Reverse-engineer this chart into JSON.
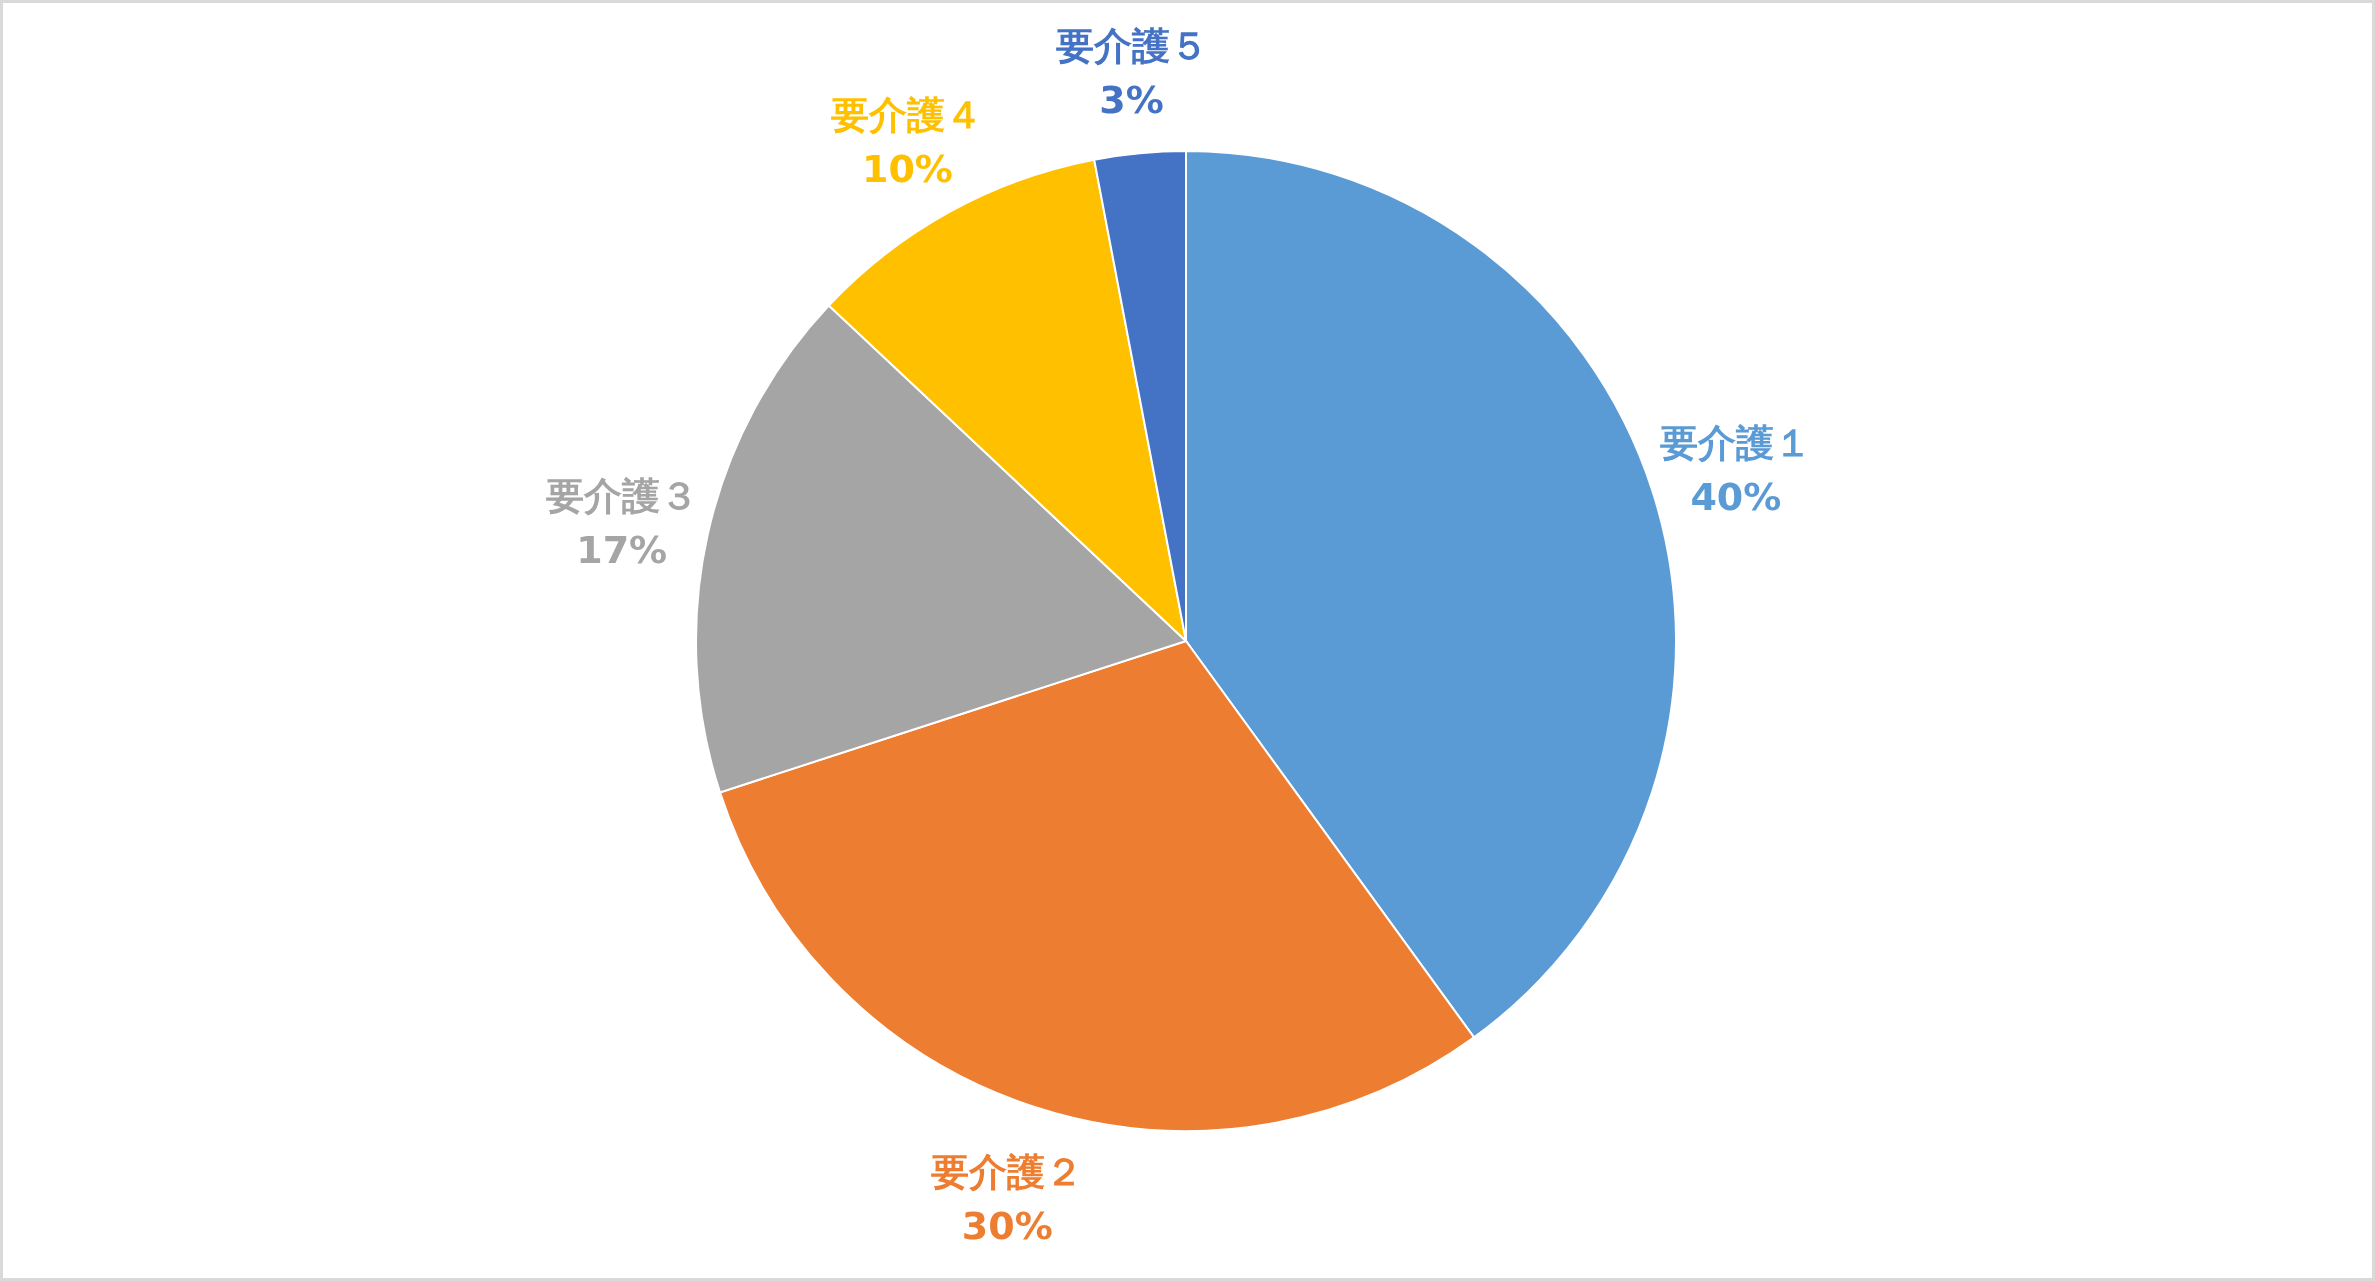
{
  "chart_data": {
    "type": "pie",
    "categories": [
      "要介護１",
      "要介護２",
      "要介護３",
      "要介護４",
      "要介護５"
    ],
    "values": [
      40,
      30,
      17,
      10,
      3
    ],
    "value_labels": [
      "40%",
      "30%",
      "17%",
      "10%",
      "3%"
    ],
    "colors": [
      "#5b9bd5",
      "#ed7d31",
      "#a5a5a5",
      "#ffc000",
      "#4472c4"
    ]
  }
}
